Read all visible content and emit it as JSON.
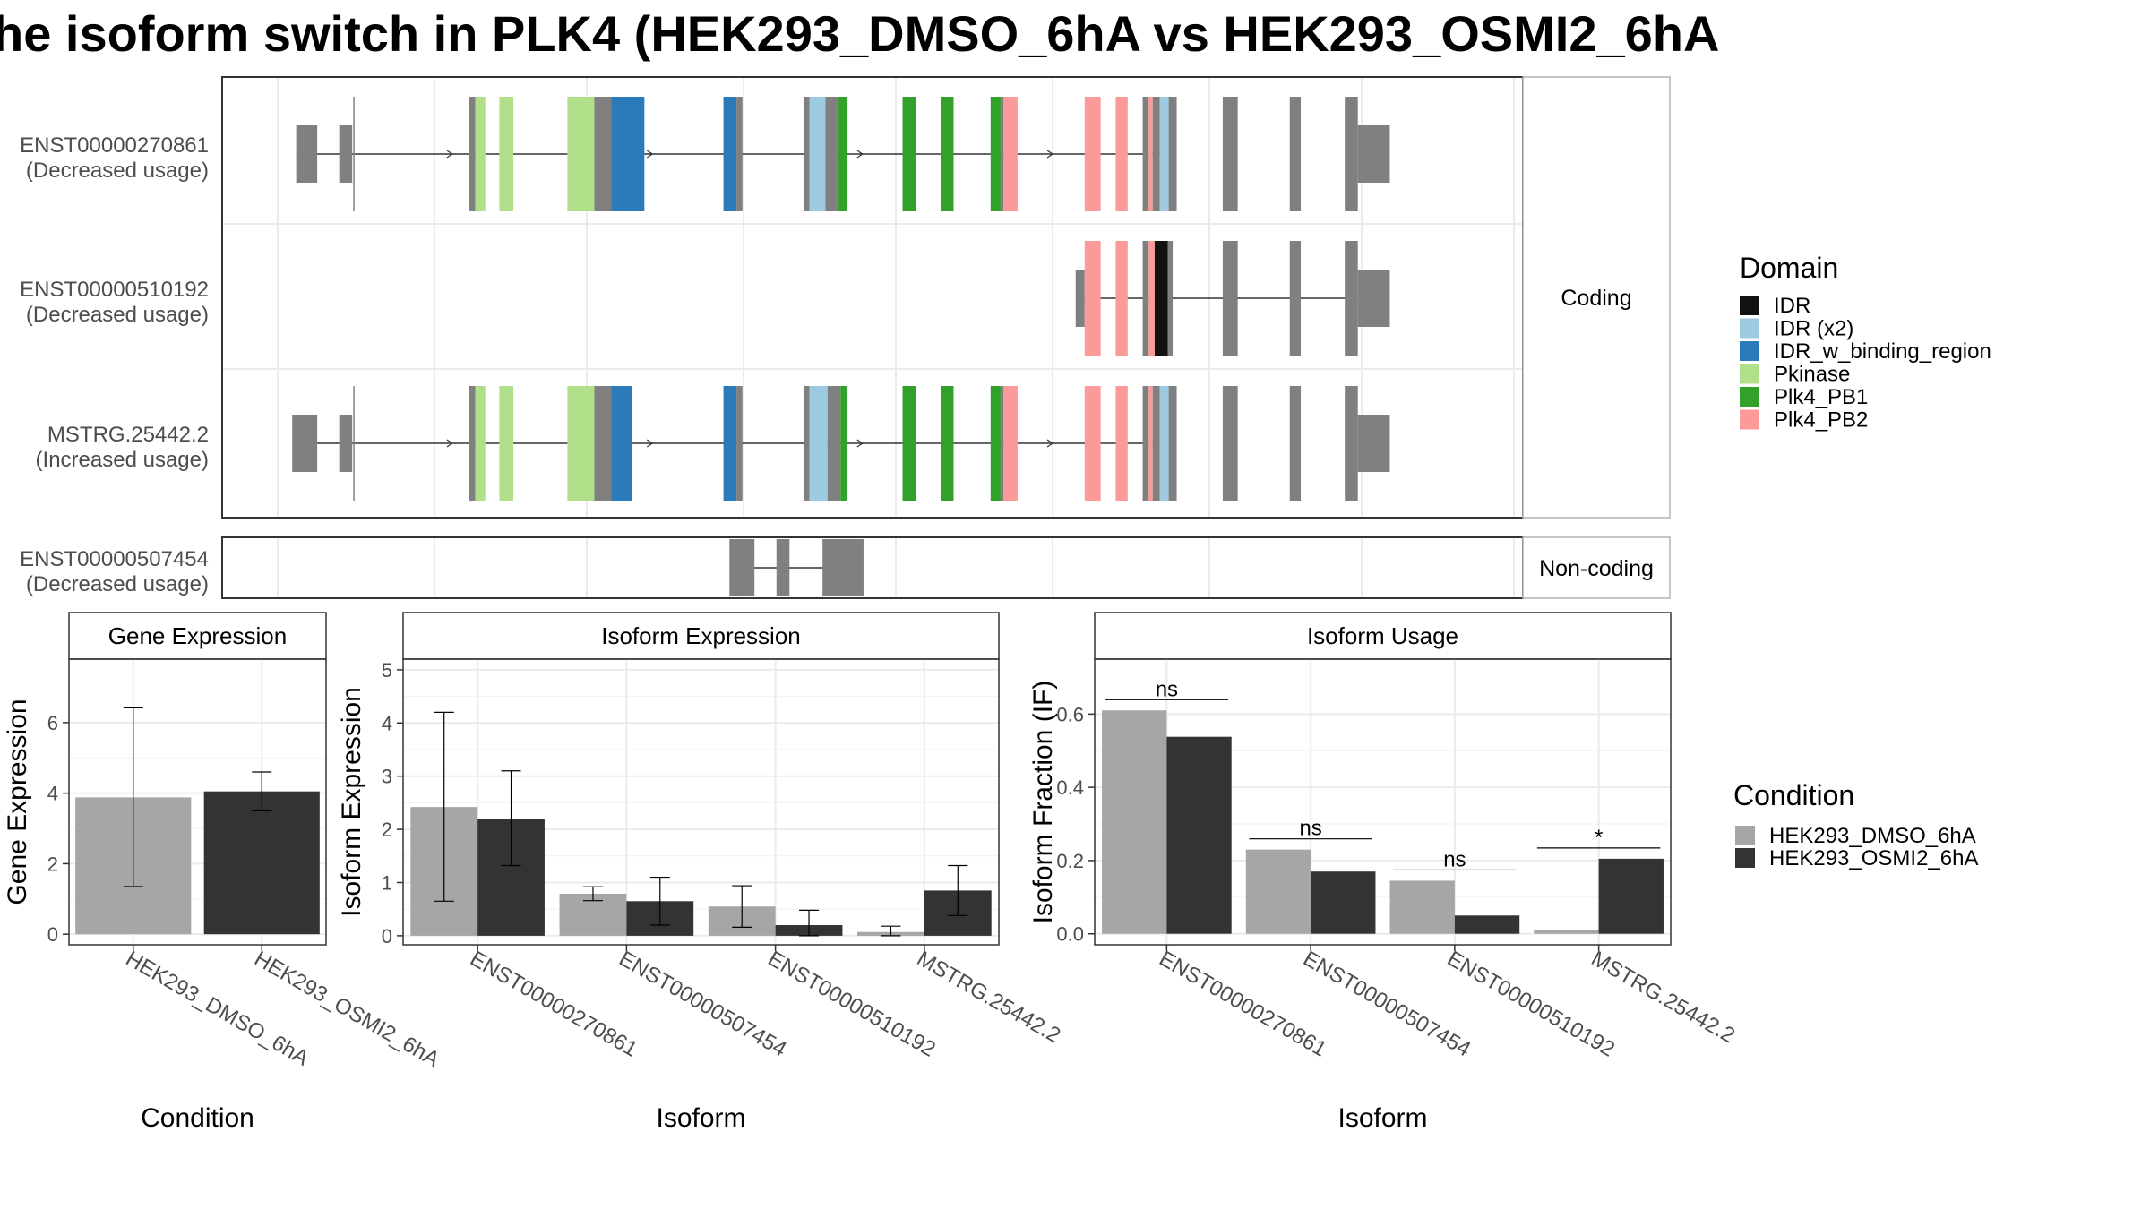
{
  "title": "he isoform switch in PLK4 (HEK293_DMSO_6hA vs HEK293_OSMI2_6hA",
  "colors": {
    "exon_grey": "#808080",
    "IDR": "#111111",
    "IDR (x2)": "#9ecae1",
    "IDR_w_binding_region": "#2b7bba",
    "Pkinase": "#b2df8a",
    "Plk4_PB1": "#33a02c",
    "Plk4_PB2": "#fb9a99",
    "dmso": "#a6a6a6",
    "osmi": "#333333",
    "panel_grid": "#ebebeb",
    "frame": "#333333"
  },
  "domain_legend": {
    "title": "Domain",
    "items": [
      "IDR",
      "IDR (x2)",
      "IDR_w_binding_region",
      "Pkinase",
      "Plk4_PB1",
      "Plk4_PB2"
    ]
  },
  "condition_legend": {
    "title": "Condition",
    "items": [
      "HEK293_DMSO_6hA",
      "HEK293_OSMI2_6hA"
    ]
  },
  "transcripts": {
    "facets": [
      "Coding",
      "Non-coding"
    ],
    "axis_range": [
      0,
      1
    ],
    "rows": [
      {
        "id": "ENST00000270861",
        "usage": "(Decreased usage)",
        "facet": "Coding",
        "intron": [
          0.074,
          0.945
        ],
        "arrows": [
          0.23,
          0.43,
          0.64,
          0.83
        ],
        "exons": [
          {
            "s": 0.074,
            "e": 0.095,
            "h": "thin",
            "c": "exon_grey"
          },
          {
            "s": 0.117,
            "e": 0.13,
            "h": "thin",
            "c": "exon_grey"
          },
          {
            "s": 0.131,
            "e": 0.132,
            "h": "thick",
            "c": "exon_grey"
          },
          {
            "s": 0.247,
            "e": 0.253,
            "h": "thick",
            "c": "exon_grey"
          },
          {
            "s": 0.253,
            "e": 0.263,
            "h": "thick",
            "c": "Pkinase"
          },
          {
            "s": 0.277,
            "e": 0.291,
            "h": "thick",
            "c": "Pkinase"
          },
          {
            "s": 0.345,
            "e": 0.372,
            "h": "thick",
            "c": "Pkinase"
          },
          {
            "s": 0.372,
            "e": 0.389,
            "h": "thick",
            "c": "exon_grey"
          },
          {
            "s": 0.389,
            "e": 0.422,
            "h": "thick",
            "c": "IDR_w_binding_region"
          },
          {
            "s": 0.501,
            "e": 0.514,
            "h": "thick",
            "c": "IDR_w_binding_region"
          },
          {
            "s": 0.514,
            "e": 0.52,
            "h": "thick",
            "c": "exon_grey"
          },
          {
            "s": 0.581,
            "e": 0.587,
            "h": "thick",
            "c": "exon_grey"
          },
          {
            "s": 0.587,
            "e": 0.603,
            "h": "thick",
            "c": "IDR (x2)"
          },
          {
            "s": 0.603,
            "e": 0.615,
            "h": "thick",
            "c": "exon_grey"
          },
          {
            "s": 0.615,
            "e": 0.625,
            "h": "thick",
            "c": "Plk4_PB1"
          },
          {
            "s": 0.68,
            "e": 0.693,
            "h": "thick",
            "c": "Plk4_PB1"
          },
          {
            "s": 0.718,
            "e": 0.731,
            "h": "thick",
            "c": "Plk4_PB1"
          },
          {
            "s": 0.768,
            "e": 0.778,
            "h": "thick",
            "c": "Plk4_PB1"
          },
          {
            "s": 0.778,
            "e": 0.781,
            "h": "thick",
            "c": "exon_grey"
          },
          {
            "s": 0.781,
            "e": 0.795,
            "h": "thick",
            "c": "Plk4_PB2"
          },
          {
            "s": 0.862,
            "e": 0.878,
            "h": "thick",
            "c": "Plk4_PB2"
          },
          {
            "s": 0.893,
            "e": 0.905,
            "h": "thick",
            "c": "Plk4_PB2"
          },
          {
            "s": 0.92,
            "e": 0.926,
            "h": "thick",
            "c": "exon_grey"
          },
          {
            "s": 0.926,
            "e": 0.93,
            "h": "thick",
            "c": "Plk4_PB2"
          },
          {
            "s": 0.93,
            "e": 0.937,
            "h": "thick",
            "c": "exon_grey"
          },
          {
            "s": 0.937,
            "e": 0.946,
            "h": "thick",
            "c": "IDR (x2)"
          },
          {
            "s": 0.946,
            "e": 0.954,
            "h": "thick",
            "c": "exon_grey"
          },
          {
            "s": 1.0,
            "e": 1.015,
            "h": "thick",
            "c": "exon_grey"
          },
          {
            "s": 1.067,
            "e": 1.078,
            "h": "thick",
            "c": "exon_grey"
          },
          {
            "s": 1.122,
            "e": 1.135,
            "h": "thick",
            "c": "exon_grey"
          },
          {
            "s": 1.135,
            "e": 1.167,
            "h": "thin",
            "c": "exon_grey"
          }
        ]
      },
      {
        "id": "ENST00000510192",
        "usage": "(Decreased usage)",
        "facet": "Coding",
        "intron": [
          0.855,
          1.165
        ],
        "arrows": [
          0.93,
          0.95
        ],
        "exons": [
          {
            "s": 0.853,
            "e": 0.862,
            "h": "thin",
            "c": "exon_grey"
          },
          {
            "s": 0.862,
            "e": 0.878,
            "h": "thick",
            "c": "Plk4_PB2"
          },
          {
            "s": 0.893,
            "e": 0.905,
            "h": "thick",
            "c": "Plk4_PB2"
          },
          {
            "s": 0.92,
            "e": 0.926,
            "h": "thick",
            "c": "exon_grey"
          },
          {
            "s": 0.926,
            "e": 0.932,
            "h": "thick",
            "c": "Plk4_PB2"
          },
          {
            "s": 0.932,
            "e": 0.945,
            "h": "thick",
            "c": "IDR"
          },
          {
            "s": 0.945,
            "e": 0.95,
            "h": "thick",
            "c": "exon_grey"
          },
          {
            "s": 1.0,
            "e": 1.015,
            "h": "thick",
            "c": "exon_grey"
          },
          {
            "s": 1.067,
            "e": 1.078,
            "h": "thick",
            "c": "exon_grey"
          },
          {
            "s": 1.122,
            "e": 1.135,
            "h": "thick",
            "c": "exon_grey"
          },
          {
            "s": 1.135,
            "e": 1.167,
            "h": "thin",
            "c": "exon_grey"
          }
        ]
      },
      {
        "id": "MSTRG.25442.2",
        "usage": "(Increased usage)",
        "facet": "Coding",
        "intron": [
          0.074,
          0.945
        ],
        "arrows": [
          0.23,
          0.43,
          0.64,
          0.83
        ],
        "exons": [
          {
            "s": 0.07,
            "e": 0.095,
            "h": "thin",
            "c": "exon_grey"
          },
          {
            "s": 0.117,
            "e": 0.13,
            "h": "thin",
            "c": "exon_grey"
          },
          {
            "s": 0.131,
            "e": 0.132,
            "h": "thick",
            "c": "exon_grey"
          },
          {
            "s": 0.247,
            "e": 0.253,
            "h": "thick",
            "c": "exon_grey"
          },
          {
            "s": 0.253,
            "e": 0.263,
            "h": "thick",
            "c": "Pkinase"
          },
          {
            "s": 0.277,
            "e": 0.291,
            "h": "thick",
            "c": "Pkinase"
          },
          {
            "s": 0.345,
            "e": 0.372,
            "h": "thick",
            "c": "Pkinase"
          },
          {
            "s": 0.372,
            "e": 0.389,
            "h": "thick",
            "c": "exon_grey"
          },
          {
            "s": 0.389,
            "e": 0.41,
            "h": "thick",
            "c": "IDR_w_binding_region"
          },
          {
            "s": 0.501,
            "e": 0.514,
            "h": "thick",
            "c": "IDR_w_binding_region"
          },
          {
            "s": 0.514,
            "e": 0.52,
            "h": "thick",
            "c": "exon_grey"
          },
          {
            "s": 0.581,
            "e": 0.587,
            "h": "thick",
            "c": "exon_grey"
          },
          {
            "s": 0.587,
            "e": 0.605,
            "h": "thick",
            "c": "IDR (x2)"
          },
          {
            "s": 0.605,
            "e": 0.618,
            "h": "thick",
            "c": "exon_grey"
          },
          {
            "s": 0.618,
            "e": 0.625,
            "h": "thick",
            "c": "Plk4_PB1"
          },
          {
            "s": 0.68,
            "e": 0.693,
            "h": "thick",
            "c": "Plk4_PB1"
          },
          {
            "s": 0.718,
            "e": 0.731,
            "h": "thick",
            "c": "Plk4_PB1"
          },
          {
            "s": 0.768,
            "e": 0.778,
            "h": "thick",
            "c": "Plk4_PB1"
          },
          {
            "s": 0.778,
            "e": 0.781,
            "h": "thick",
            "c": "exon_grey"
          },
          {
            "s": 0.781,
            "e": 0.795,
            "h": "thick",
            "c": "Plk4_PB2"
          },
          {
            "s": 0.862,
            "e": 0.878,
            "h": "thick",
            "c": "Plk4_PB2"
          },
          {
            "s": 0.893,
            "e": 0.905,
            "h": "thick",
            "c": "Plk4_PB2"
          },
          {
            "s": 0.92,
            "e": 0.926,
            "h": "thick",
            "c": "exon_grey"
          },
          {
            "s": 0.926,
            "e": 0.93,
            "h": "thick",
            "c": "Plk4_PB2"
          },
          {
            "s": 0.93,
            "e": 0.937,
            "h": "thick",
            "c": "exon_grey"
          },
          {
            "s": 0.937,
            "e": 0.946,
            "h": "thick",
            "c": "IDR (x2)"
          },
          {
            "s": 0.946,
            "e": 0.954,
            "h": "thick",
            "c": "exon_grey"
          },
          {
            "s": 1.0,
            "e": 1.015,
            "h": "thick",
            "c": "exon_grey"
          },
          {
            "s": 1.067,
            "e": 1.078,
            "h": "thick",
            "c": "exon_grey"
          },
          {
            "s": 1.122,
            "e": 1.135,
            "h": "thick",
            "c": "exon_grey"
          },
          {
            "s": 1.135,
            "e": 1.167,
            "h": "thin",
            "c": "exon_grey"
          }
        ]
      },
      {
        "id": "ENST00000507454",
        "usage": "(Decreased usage)",
        "facet": "Non-coding",
        "intron": [
          0.527,
          0.635
        ],
        "arrows": [],
        "exons": [
          {
            "s": 0.507,
            "e": 0.532,
            "h": "thick",
            "c": "exon_grey"
          },
          {
            "s": 0.554,
            "e": 0.567,
            "h": "thick",
            "c": "exon_grey"
          },
          {
            "s": 0.6,
            "e": 0.641,
            "h": "thick",
            "c": "exon_grey"
          }
        ]
      }
    ]
  },
  "chart_data": [
    {
      "type": "bar",
      "title": "Gene Expression",
      "xlabel": "Condition",
      "ylabel": "Gene Expression",
      "categories": [
        "HEK293_DMSO_6hA",
        "HEK293_OSMI2_6hA"
      ],
      "values": [
        3.88,
        4.05
      ],
      "error_low": [
        1.35,
        3.5
      ],
      "error_high": [
        6.42,
        4.6
      ],
      "ylim": [
        -0.3,
        7.8
      ],
      "yticks": [
        0,
        2,
        4,
        6
      ],
      "grid": true
    },
    {
      "type": "bar",
      "title": "Isoform Expression",
      "xlabel": "Isoform",
      "ylabel": "Isoform Expression",
      "categories": [
        "ENST00000270861",
        "ENST00000507454",
        "ENST00000510192",
        "MSTRG.25442.2"
      ],
      "series": [
        {
          "name": "HEK293_DMSO_6hA",
          "values": [
            2.42,
            0.79,
            0.55,
            0.07
          ],
          "error_low": [
            0.65,
            0.66,
            0.16,
            0.0
          ],
          "error_high": [
            4.2,
            0.92,
            0.94,
            0.18
          ]
        },
        {
          "name": "HEK293_OSMI2_6hA",
          "values": [
            2.2,
            0.65,
            0.2,
            0.85
          ],
          "error_low": [
            1.32,
            0.2,
            0.0,
            0.38
          ],
          "error_high": [
            3.1,
            1.1,
            0.48,
            1.32
          ]
        }
      ],
      "ylim": [
        -0.17,
        5.2
      ],
      "yticks": [
        0,
        1,
        2,
        3,
        4,
        5
      ],
      "grid": true
    },
    {
      "type": "bar",
      "title": "Isoform Usage",
      "xlabel": "Isoform",
      "ylabel": "Isoform Fraction (IF)",
      "categories": [
        "ENST00000270861",
        "ENST00000507454",
        "ENST00000510192",
        "MSTRG.25442.2"
      ],
      "series": [
        {
          "name": "HEK293_DMSO_6hA",
          "values": [
            0.61,
            0.23,
            0.145,
            0.01
          ]
        },
        {
          "name": "HEK293_OSMI2_6hA",
          "values": [
            0.538,
            0.17,
            0.05,
            0.205
          ]
        }
      ],
      "significance": [
        "ns",
        "ns",
        "ns",
        "*"
      ],
      "ylim": [
        -0.03,
        0.75
      ],
      "yticks": [
        0.0,
        0.2,
        0.4,
        0.6
      ],
      "ytick_labels": [
        "0.0",
        "0.2",
        "0.4",
        "0.6"
      ],
      "grid": true
    }
  ]
}
